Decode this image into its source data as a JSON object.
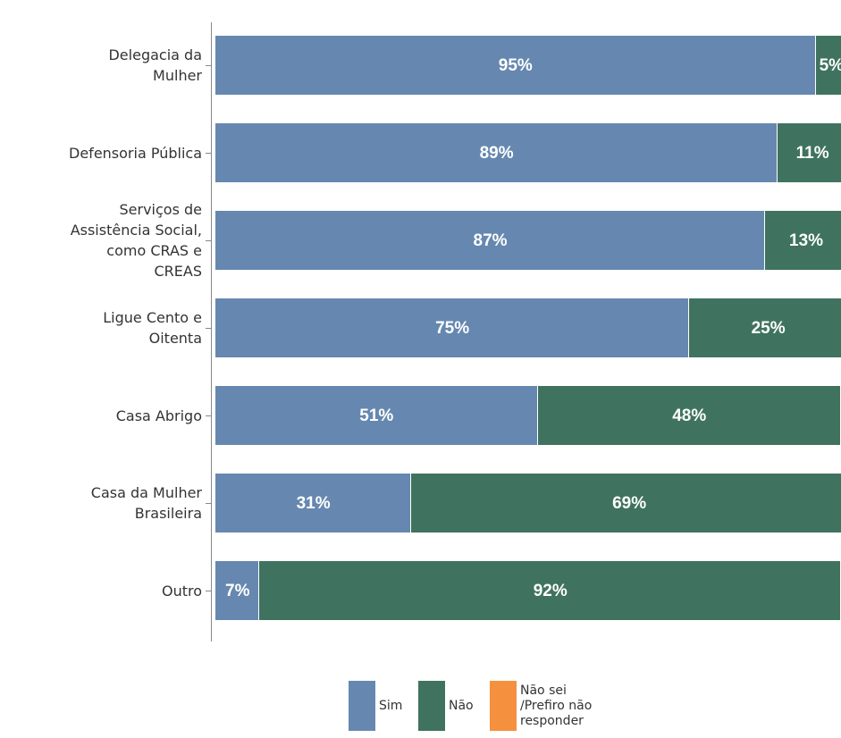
{
  "chart_data": {
    "type": "stacked-bar-horizontal",
    "categories": [
      "Delegacia da Mulher",
      "Defensoria Pública",
      "Serviços de Assistência Social, como CRAS e CREAS",
      "Ligue Cento e Oitenta",
      "Casa Abrigo",
      "Casa da Mulher Brasileira",
      "Outro"
    ],
    "xlim": [
      0,
      100
    ],
    "series": [
      {
        "name": "Sim",
        "color": "#6688b0",
        "values": [
          95,
          89,
          87,
          75,
          51,
          31,
          7
        ],
        "value_labels": [
          "95%",
          "89%",
          "87%",
          "75%",
          "51%",
          "31%",
          "7%"
        ]
      },
      {
        "name": "Não",
        "color": "#3f7360",
        "values": [
          5,
          11,
          13,
          25,
          48,
          69,
          92
        ],
        "value_labels": [
          "5%",
          "11%",
          "13%",
          "25%",
          "48%",
          "69%",
          "92%"
        ]
      },
      {
        "name": "Não sei /Prefiro não responder",
        "color": "#f5913e",
        "values": [
          0,
          0,
          0,
          0,
          1,
          0,
          1
        ]
      }
    ]
  }
}
